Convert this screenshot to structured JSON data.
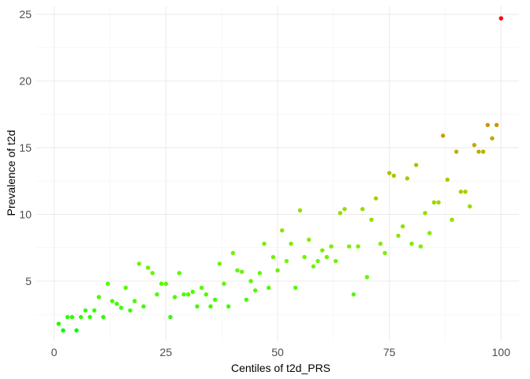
{
  "chart_data": {
    "type": "scatter",
    "title": "",
    "xlabel": "Centiles of t2d_PRS",
    "ylabel": "Prevalence of t2d",
    "xlim": [
      -4,
      104
    ],
    "ylim": [
      0.5,
      25.6
    ],
    "x_ticks": [
      0,
      25,
      50,
      75,
      100
    ],
    "y_ticks": [
      5,
      10,
      15,
      20,
      25
    ],
    "x_tick_labels": [
      "0",
      "25",
      "50",
      "75",
      "100"
    ],
    "y_tick_labels": [
      "5",
      "10",
      "15",
      "20",
      "25"
    ],
    "grid": true,
    "legend": "none",
    "color_scale": {
      "low": "#00ff00",
      "high": "#ff0000",
      "domain": [
        1.3,
        24.7
      ]
    },
    "x": [
      1,
      2,
      3,
      4,
      5,
      6,
      7,
      8,
      9,
      10,
      11,
      12,
      13,
      14,
      15,
      16,
      17,
      18,
      19,
      20,
      21,
      22,
      23,
      24,
      25,
      26,
      27,
      28,
      29,
      30,
      31,
      32,
      33,
      34,
      35,
      36,
      37,
      38,
      39,
      40,
      41,
      42,
      43,
      44,
      45,
      46,
      47,
      48,
      49,
      50,
      51,
      52,
      53,
      54,
      55,
      56,
      57,
      58,
      59,
      60,
      61,
      62,
      63,
      64,
      65,
      66,
      67,
      68,
      69,
      70,
      71,
      72,
      73,
      74,
      75,
      76,
      77,
      78,
      79,
      80,
      81,
      82,
      83,
      84,
      85,
      86,
      87,
      88,
      89,
      90,
      91,
      92,
      93,
      94,
      95,
      96,
      97,
      98,
      99,
      100
    ],
    "y": [
      1.8,
      1.3,
      2.3,
      2.3,
      1.3,
      2.3,
      2.8,
      2.3,
      2.8,
      3.8,
      2.3,
      4.8,
      3.5,
      3.3,
      3.0,
      4.5,
      2.8,
      3.5,
      6.3,
      3.1,
      6.0,
      5.6,
      4.0,
      4.8,
      4.8,
      2.3,
      3.8,
      5.6,
      4.0,
      4.0,
      4.2,
      3.1,
      4.5,
      4.0,
      3.1,
      3.6,
      6.3,
      4.8,
      3.1,
      7.1,
      5.8,
      5.7,
      3.6,
      5.0,
      4.3,
      5.6,
      7.8,
      4.5,
      6.8,
      5.8,
      8.8,
      6.5,
      7.8,
      4.5,
      10.3,
      6.8,
      8.1,
      6.1,
      6.5,
      7.3,
      6.8,
      7.6,
      6.5,
      10.1,
      10.4,
      7.6,
      4.0,
      7.6,
      10.4,
      5.3,
      9.6,
      11.2,
      7.8,
      7.1,
      13.1,
      12.9,
      8.4,
      9.1,
      12.7,
      7.8,
      13.7,
      7.6,
      10.1,
      8.6,
      10.9,
      10.9,
      15.9,
      12.6,
      9.6,
      14.7,
      11.7,
      11.7,
      10.6,
      15.2,
      14.7,
      14.7,
      16.7,
      15.7,
      16.7,
      24.7
    ]
  }
}
